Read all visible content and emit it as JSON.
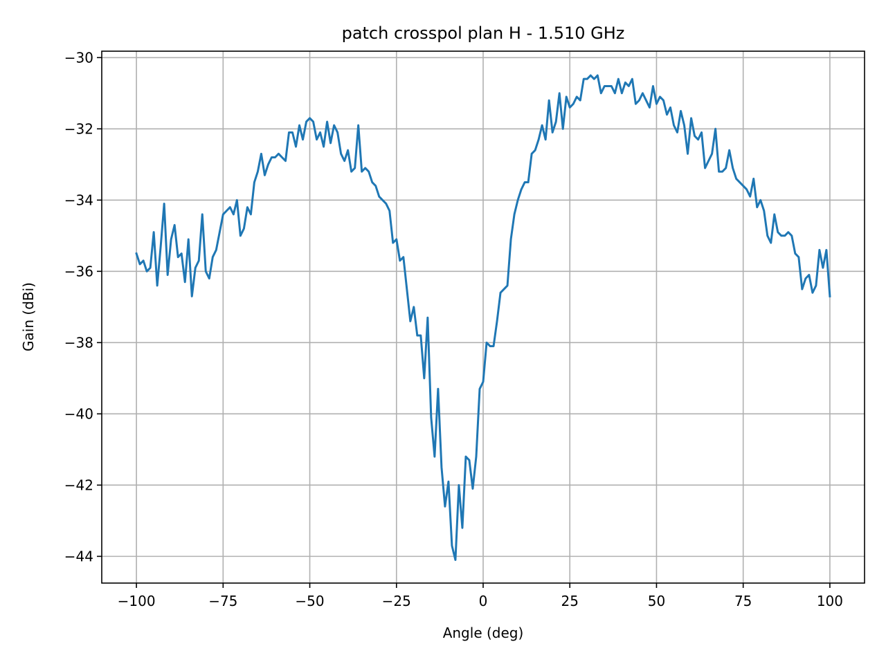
{
  "chart_data": {
    "type": "line",
    "title": "patch crosspol plan H - 1.510 GHz",
    "xlabel": "Angle (deg)",
    "ylabel": "Gain (dBi)",
    "xlim": [
      -110,
      110
    ],
    "ylim": [
      -44.75,
      -29.82
    ],
    "xticks": [
      -100,
      -75,
      -50,
      -25,
      0,
      25,
      50,
      75,
      100
    ],
    "xtick_labels": [
      "−100",
      "−75",
      "−50",
      "−25",
      "0",
      "25",
      "50",
      "75",
      "100"
    ],
    "yticks": [
      -44,
      -42,
      -40,
      -38,
      -36,
      -34,
      -32,
      -30
    ],
    "ytick_labels": [
      "−44",
      "−42",
      "−40",
      "−38",
      "−36",
      "−34",
      "−32",
      "−30"
    ],
    "grid": true,
    "line_color": "#1f77b4",
    "series": [
      {
        "x": [
          -100,
          -99,
          -98,
          -97,
          -96,
          -95,
          -94,
          -93,
          -92,
          -91,
          -90,
          -89,
          -88,
          -87,
          -86,
          -85,
          -84,
          -83,
          -82,
          -81,
          -80,
          -79,
          -78,
          -77,
          -76,
          -75,
          -74,
          -73,
          -72,
          -71,
          -70,
          -69,
          -68,
          -67,
          -66,
          -65,
          -64,
          -63,
          -62,
          -61,
          -60,
          -59,
          -58,
          -57,
          -56,
          -55,
          -54,
          -53,
          -52,
          -51,
          -50,
          -49,
          -48,
          -47,
          -46,
          -45,
          -44,
          -43,
          -42,
          -41,
          -40,
          -39,
          -38,
          -37,
          -36,
          -35,
          -34,
          -33,
          -32,
          -31,
          -30,
          -29,
          -28,
          -27,
          -26,
          -25,
          -24,
          -23,
          -22,
          -21,
          -20,
          -19,
          -18,
          -17,
          -16,
          -15,
          -14,
          -13,
          -12,
          -11,
          -10,
          -9,
          -8,
          -7,
          -6,
          -5,
          -4,
          -3,
          -2,
          -1,
          0,
          1,
          2,
          3,
          4,
          5,
          6,
          7,
          8,
          9,
          10,
          11,
          12,
          13,
          14,
          15,
          16,
          17,
          18,
          19,
          20,
          21,
          22,
          23,
          24,
          25,
          26,
          27,
          28,
          29,
          30,
          31,
          32,
          33,
          34,
          35,
          36,
          37,
          38,
          39,
          40,
          41,
          42,
          43,
          44,
          45,
          46,
          47,
          48,
          49,
          50,
          51,
          52,
          53,
          54,
          55,
          56,
          57,
          58,
          59,
          60,
          61,
          62,
          63,
          64,
          65,
          66,
          67,
          68,
          69,
          70,
          71,
          72,
          73,
          74,
          75,
          76,
          77,
          78,
          79,
          80,
          81,
          82,
          83,
          84,
          85,
          86,
          87,
          88,
          89,
          90,
          91,
          92,
          93,
          94,
          95,
          96,
          97,
          98,
          99,
          100
        ],
        "y": [
          -35.5,
          -35.8,
          -35.7,
          -36.0,
          -35.9,
          -34.9,
          -36.4,
          -35.3,
          -34.1,
          -36.1,
          -35.1,
          -34.7,
          -35.6,
          -35.5,
          -36.3,
          -35.1,
          -36.7,
          -35.9,
          -35.7,
          -34.4,
          -36.0,
          -36.2,
          -35.6,
          -35.4,
          -34.9,
          -34.4,
          -34.3,
          -34.2,
          -34.4,
          -34.0,
          -35.0,
          -34.8,
          -34.2,
          -34.4,
          -33.5,
          -33.2,
          -32.7,
          -33.3,
          -33.0,
          -32.8,
          -32.8,
          -32.7,
          -32.8,
          -32.9,
          -32.1,
          -32.1,
          -32.5,
          -31.9,
          -32.3,
          -31.8,
          -31.7,
          -31.8,
          -32.3,
          -32.1,
          -32.5,
          -31.8,
          -32.4,
          -31.9,
          -32.1,
          -32.7,
          -32.9,
          -32.6,
          -33.2,
          -33.1,
          -31.9,
          -33.2,
          -33.1,
          -33.2,
          -33.5,
          -33.6,
          -33.9,
          -34.0,
          -34.1,
          -34.3,
          -35.2,
          -35.1,
          -35.7,
          -35.6,
          -36.5,
          -37.4,
          -37.0,
          -37.8,
          -37.8,
          -39.0,
          -37.3,
          -40.1,
          -41.2,
          -39.3,
          -41.5,
          -42.6,
          -41.9,
          -43.7,
          -44.1,
          -42.0,
          -43.2,
          -41.2,
          -41.3,
          -42.1,
          -41.2,
          -39.3,
          -39.1,
          -38.0,
          -38.1,
          -38.1,
          -37.4,
          -36.6,
          -36.5,
          -36.4,
          -35.1,
          -34.4,
          -34.0,
          -33.7,
          -33.5,
          -33.5,
          -32.7,
          -32.6,
          -32.3,
          -31.9,
          -32.3,
          -31.2,
          -32.1,
          -31.8,
          -31.0,
          -32.0,
          -31.1,
          -31.4,
          -31.3,
          -31.1,
          -31.2,
          -30.6,
          -30.6,
          -30.5,
          -30.6,
          -30.5,
          -31.0,
          -30.8,
          -30.8,
          -30.8,
          -31.0,
          -30.6,
          -31.0,
          -30.7,
          -30.8,
          -30.6,
          -31.3,
          -31.2,
          -31.0,
          -31.2,
          -31.4,
          -30.8,
          -31.3,
          -31.1,
          -31.2,
          -31.6,
          -31.4,
          -31.9,
          -32.1,
          -31.5,
          -31.9,
          -32.7,
          -31.7,
          -32.2,
          -32.3,
          -32.1,
          -33.1,
          -32.9,
          -32.7,
          -32.0,
          -33.2,
          -33.2,
          -33.1,
          -32.6,
          -33.1,
          -33.4,
          -33.5,
          -33.6,
          -33.7,
          -33.9,
          -33.4,
          -34.2,
          -34.0,
          -34.3,
          -35.0,
          -35.2,
          -34.4,
          -34.9,
          -35.0,
          -35.0,
          -34.9,
          -35.0,
          -35.5,
          -35.6,
          -36.5,
          -36.2,
          -36.1,
          -36.6,
          -36.4,
          -35.4,
          -35.9,
          -35.4,
          -36.7
        ]
      }
    ]
  }
}
